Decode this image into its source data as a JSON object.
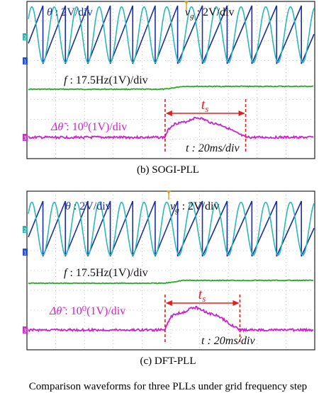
{
  "panels": [
    {
      "id": "b",
      "caption": "(b) SOGI-PLL",
      "labels": {
        "theta_sym": "θ",
        "theta_scale": " : 2V/div",
        "vg_sym": "v",
        "vg_sub": "g",
        "vg_scale": " : 2V/div",
        "f_sym": "f",
        "f_scale": " : 17.5Hz(1V)/div",
        "dtheta_sym": "Δθ̃",
        "dtheta_scale": " : 10⁰(1V)/div",
        "ts_sym": "t",
        "ts_sub": "s",
        "time_scale": "t : 20ms/div"
      },
      "channel_markers": [
        "2",
        "1",
        "3"
      ],
      "transient": {
        "start_div": 4.8,
        "end_div": 7.6
      }
    },
    {
      "id": "c",
      "caption": "(c) DFT-PLL",
      "labels": {
        "theta_sym": "θ",
        "theta_scale": " : 2V/div",
        "vg_sym": "v",
        "vg_sub": "g",
        "vg_scale": " : 2V/div",
        "f_sym": "f",
        "f_scale": " : 17.5Hz(1V)/div",
        "dtheta_sym": "Δθ̃",
        "dtheta_scale": " : 10⁰(1V)/div",
        "ts_sym": "t",
        "ts_sub": "s",
        "time_scale": "t : 20ms/div"
      },
      "channel_markers": [
        "2",
        "1",
        "3"
      ],
      "transient": {
        "start_div": 4.8,
        "end_div": 7.4
      }
    }
  ],
  "partial_caption": "Comparison waveforms for three PLLs under grid frequency step",
  "colors": {
    "theta": "#1a2f9e",
    "vg": "#2ab8b8",
    "freq": "#28a828",
    "dtheta": "#cc22cc",
    "marker": "#e02020",
    "grid": "#9a9a9a",
    "ch1_marker": "#2a4fd0",
    "ch2_marker": "#33b0b0",
    "ch3_marker": "#cc33cc"
  }
}
